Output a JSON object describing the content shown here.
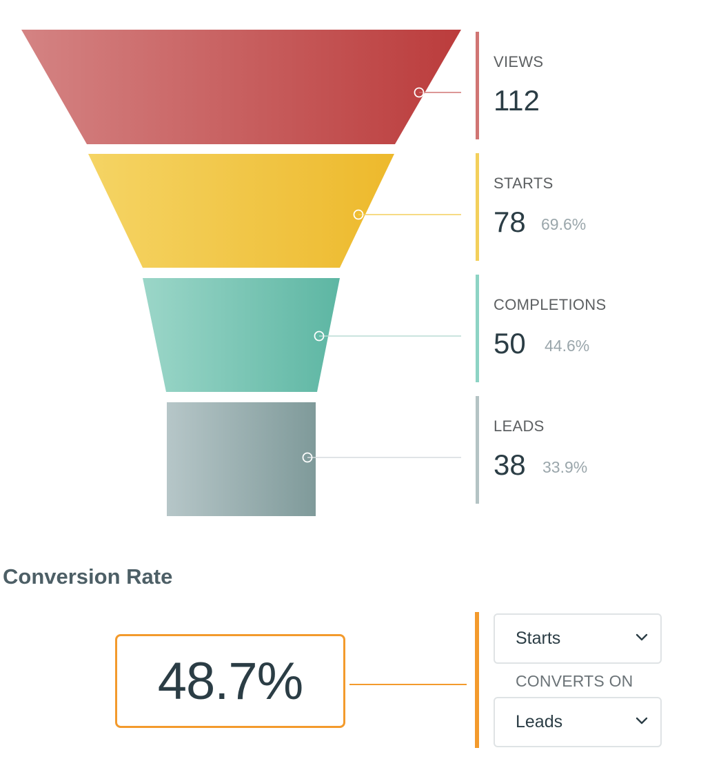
{
  "colors": {
    "views": "#d07573",
    "starts": "#f3cf5b",
    "completions": "#8dd3c4",
    "leads": "#b4c3c4",
    "accent": "#f39a2c",
    "text_dark": "#2b3d45"
  },
  "chart_data": {
    "type": "funnel",
    "categories": [
      "VIEWS",
      "STARTS",
      "COMPLETIONS",
      "LEADS"
    ],
    "values": [
      112,
      78,
      50,
      38
    ],
    "percent_of_views": [
      null,
      "69.6%",
      "44.6%",
      "33.9%"
    ]
  },
  "stages": [
    {
      "label": "VIEWS",
      "value": "112",
      "pct": ""
    },
    {
      "label": "STARTS",
      "value": "78",
      "pct": "69.6%"
    },
    {
      "label": "COMPLETIONS",
      "value": "50",
      "pct": "44.6%"
    },
    {
      "label": "LEADS",
      "value": "38",
      "pct": "33.9%"
    }
  ],
  "conversion": {
    "title": "Conversion Rate",
    "rate": "48.7%",
    "from_select": "Starts",
    "converts_on_label": "CONVERTS ON",
    "to_select": "Leads",
    "chevron_icon": "chevron-down-icon"
  }
}
